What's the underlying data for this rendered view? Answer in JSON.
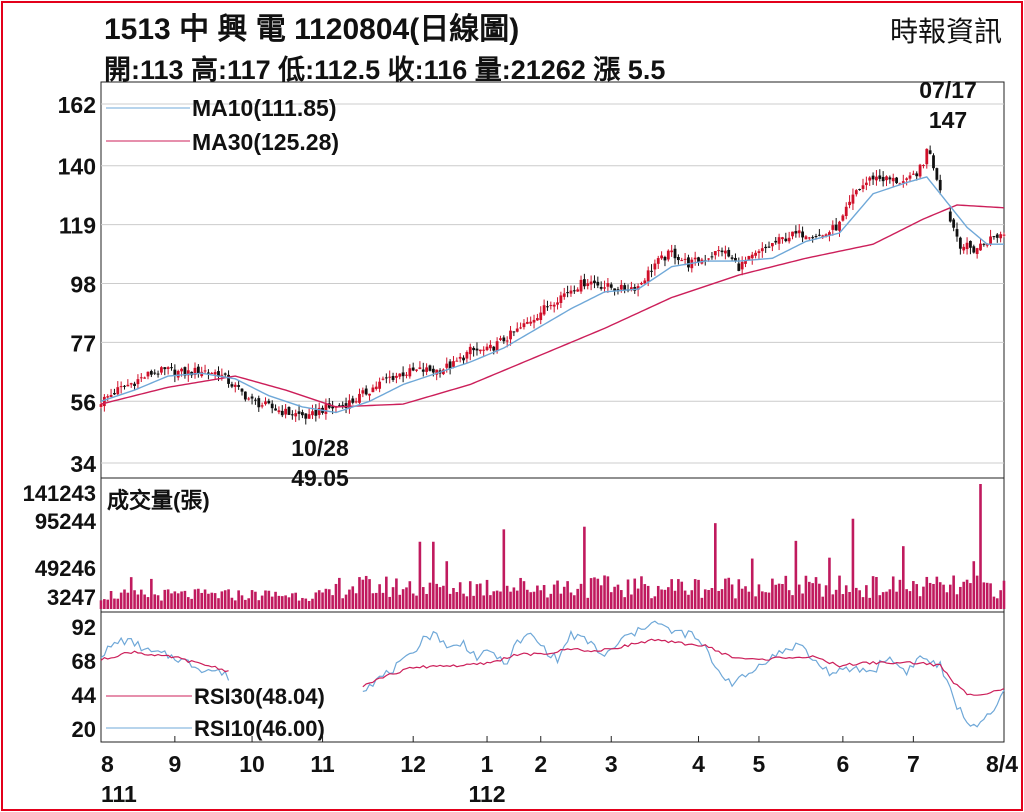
{
  "header": {
    "title": "1513  中 興 電 1120804(日線圖)",
    "source": "時報資訊",
    "quote": "開:113 高:117 低:112.5 收:116 量:21262 漲 5.5"
  },
  "colors": {
    "up": "#d0102a",
    "down": "#111111",
    "ma10": "#6fa8d8",
    "ma30": "#cc1f5a",
    "volume": "#c01a5e",
    "rsi10": "#6fa8d8",
    "rsi30": "#cc1f5a",
    "frame": "#e3001b",
    "grid": "#cccccc"
  },
  "chart_data": [
    {
      "type": "candlestick",
      "panel": "price",
      "ylim": [
        34,
        162
      ],
      "yticks": [
        "162",
        "140",
        "119",
        "98",
        "77",
        "56",
        "34"
      ],
      "grid": true,
      "legend": [
        "MA10(111.85)",
        "MA30(125.28)"
      ],
      "annotations": [
        {
          "date": "07/17",
          "value": "147"
        },
        {
          "date": "10/28",
          "value": "49.05"
        }
      ],
      "anchors": [
        [
          0,
          56
        ],
        [
          5,
          60
        ],
        [
          10,
          63
        ],
        [
          15,
          66
        ],
        [
          20,
          67
        ],
        [
          25,
          66
        ],
        [
          30,
          67
        ],
        [
          35,
          66
        ],
        [
          40,
          61
        ],
        [
          45,
          56
        ],
        [
          50,
          54
        ],
        [
          55,
          52
        ],
        [
          60,
          51
        ],
        [
          62,
          50
        ],
        [
          65,
          53
        ],
        [
          70,
          54
        ],
        [
          75,
          56
        ],
        [
          80,
          60
        ],
        [
          85,
          64
        ],
        [
          90,
          66
        ],
        [
          95,
          67
        ],
        [
          100,
          67
        ],
        [
          105,
          69
        ],
        [
          110,
          74
        ],
        [
          115,
          74
        ],
        [
          120,
          78
        ],
        [
          125,
          82
        ],
        [
          130,
          87
        ],
        [
          135,
          92
        ],
        [
          140,
          96
        ],
        [
          145,
          99
        ],
        [
          150,
          97
        ],
        [
          155,
          96
        ],
        [
          160,
          97
        ],
        [
          165,
          105
        ],
        [
          170,
          109
        ],
        [
          175,
          105
        ],
        [
          180,
          107
        ],
        [
          185,
          110
        ],
        [
          190,
          104
        ],
        [
          195,
          108
        ],
        [
          200,
          112
        ],
        [
          205,
          115
        ],
        [
          210,
          116
        ],
        [
          215,
          115
        ],
        [
          220,
          119
        ],
        [
          225,
          131
        ],
        [
          230,
          136
        ],
        [
          235,
          135
        ],
        [
          240,
          134
        ],
        [
          245,
          140
        ],
        [
          246,
          147
        ],
        [
          248,
          140
        ],
        [
          252,
          124
        ],
        [
          256,
          112
        ],
        [
          260,
          110
        ],
        [
          265,
          114
        ],
        [
          269,
          116
        ]
      ],
      "ma10": [
        [
          0,
          56
        ],
        [
          10,
          60
        ],
        [
          20,
          65
        ],
        [
          30,
          66
        ],
        [
          40,
          64
        ],
        [
          50,
          58
        ],
        [
          60,
          54
        ],
        [
          70,
          52
        ],
        [
          80,
          56
        ],
        [
          90,
          62
        ],
        [
          100,
          66
        ],
        [
          110,
          70
        ],
        [
          120,
          75
        ],
        [
          130,
          82
        ],
        [
          140,
          89
        ],
        [
          150,
          95
        ],
        [
          160,
          96
        ],
        [
          170,
          104
        ],
        [
          180,
          106
        ],
        [
          190,
          106
        ],
        [
          200,
          107
        ],
        [
          210,
          113
        ],
        [
          220,
          116
        ],
        [
          230,
          130
        ],
        [
          240,
          134
        ],
        [
          246,
          136
        ],
        [
          252,
          127
        ],
        [
          258,
          118
        ],
        [
          264,
          112
        ],
        [
          269,
          112
        ]
      ],
      "ma30": [
        [
          0,
          55
        ],
        [
          20,
          61
        ],
        [
          40,
          65
        ],
        [
          55,
          60
        ],
        [
          70,
          54
        ],
        [
          90,
          55
        ],
        [
          110,
          62
        ],
        [
          130,
          72
        ],
        [
          150,
          82
        ],
        [
          170,
          93
        ],
        [
          190,
          101
        ],
        [
          210,
          107
        ],
        [
          230,
          112
        ],
        [
          245,
          121
        ],
        [
          255,
          126
        ],
        [
          269,
          125
        ]
      ]
    },
    {
      "type": "bar",
      "panel": "volume",
      "title": "成交量(張)",
      "ylim": [
        0,
        141243
      ],
      "yticks": [
        "141243",
        "95244",
        "49246",
        "3247"
      ],
      "spikes": [
        [
          9,
          36000
        ],
        [
          15,
          34000
        ],
        [
          95,
          76000
        ],
        [
          99,
          76000
        ],
        [
          103,
          54000
        ],
        [
          120,
          90000
        ],
        [
          144,
          93000
        ],
        [
          183,
          97000
        ],
        [
          194,
          57000
        ],
        [
          207,
          77000
        ],
        [
          217,
          58000
        ],
        [
          224,
          102000
        ],
        [
          239,
          71000
        ],
        [
          260,
          54000
        ],
        [
          262,
          141243
        ],
        [
          265,
          29000
        ],
        [
          268,
          21262
        ]
      ],
      "max_display": "141243"
    },
    {
      "type": "line",
      "panel": "rsi",
      "ylim": [
        20,
        92
      ],
      "yticks": [
        "92",
        "68",
        "44",
        "20"
      ],
      "legend": [
        "RSI30(48.04)",
        "RSI10(46.00)"
      ],
      "rsi10": [
        [
          0,
          72
        ],
        [
          6,
          82
        ],
        [
          10,
          80
        ],
        [
          14,
          74
        ],
        [
          18,
          72
        ],
        [
          22,
          70
        ],
        [
          26,
          66
        ],
        [
          30,
          62
        ],
        [
          35,
          60
        ],
        [
          38,
          56
        ],
        [
          78,
          48
        ],
        [
          85,
          58
        ],
        [
          92,
          70
        ],
        [
          96,
          84
        ],
        [
          100,
          86
        ],
        [
          104,
          76
        ],
        [
          108,
          80
        ],
        [
          112,
          70
        ],
        [
          117,
          74
        ],
        [
          120,
          64
        ],
        [
          124,
          80
        ],
        [
          128,
          86
        ],
        [
          132,
          76
        ],
        [
          136,
          68
        ],
        [
          140,
          86
        ],
        [
          146,
          80
        ],
        [
          150,
          70
        ],
        [
          156,
          84
        ],
        [
          160,
          88
        ],
        [
          164,
          96
        ],
        [
          170,
          88
        ],
        [
          176,
          86
        ],
        [
          180,
          76
        ],
        [
          184,
          60
        ],
        [
          188,
          52
        ],
        [
          192,
          56
        ],
        [
          198,
          68
        ],
        [
          205,
          76
        ],
        [
          208,
          80
        ],
        [
          212,
          68
        ],
        [
          218,
          58
        ],
        [
          224,
          62
        ],
        [
          230,
          60
        ],
        [
          234,
          70
        ],
        [
          240,
          60
        ],
        [
          244,
          70
        ],
        [
          250,
          64
        ],
        [
          254,
          40
        ],
        [
          258,
          24
        ],
        [
          262,
          22
        ],
        [
          266,
          32
        ],
        [
          269,
          46
        ]
      ],
      "rsi30": [
        [
          0,
          68
        ],
        [
          6,
          72
        ],
        [
          10,
          74
        ],
        [
          16,
          71
        ],
        [
          22,
          70
        ],
        [
          28,
          66
        ],
        [
          34,
          63
        ],
        [
          38,
          60
        ],
        [
          78,
          50
        ],
        [
          84,
          56
        ],
        [
          92,
          62
        ],
        [
          100,
          64
        ],
        [
          108,
          64
        ],
        [
          116,
          66
        ],
        [
          124,
          72
        ],
        [
          132,
          72
        ],
        [
          140,
          76
        ],
        [
          148,
          74
        ],
        [
          156,
          78
        ],
        [
          164,
          82
        ],
        [
          172,
          80
        ],
        [
          180,
          78
        ],
        [
          188,
          70
        ],
        [
          196,
          68
        ],
        [
          204,
          70
        ],
        [
          212,
          70
        ],
        [
          220,
          64
        ],
        [
          228,
          66
        ],
        [
          236,
          66
        ],
        [
          244,
          66
        ],
        [
          250,
          64
        ],
        [
          254,
          52
        ],
        [
          258,
          44
        ],
        [
          262,
          44
        ],
        [
          266,
          46
        ],
        [
          269,
          48
        ]
      ]
    }
  ],
  "x_axis": {
    "month_ticks": [
      {
        "label": "8",
        "x": 0
      },
      {
        "label": "9",
        "x": 22
      },
      {
        "label": "10",
        "x": 45
      },
      {
        "label": "11",
        "x": 66
      },
      {
        "label": "12",
        "x": 93
      },
      {
        "label": "1",
        "x": 115
      },
      {
        "label": "2",
        "x": 131
      },
      {
        "label": "3",
        "x": 152
      },
      {
        "label": "4",
        "x": 178
      },
      {
        "label": "5",
        "x": 196
      },
      {
        "label": "6",
        "x": 221
      },
      {
        "label": "7",
        "x": 242
      },
      {
        "label": "8/4",
        "x": 269
      }
    ],
    "year_labels": [
      {
        "label": "111",
        "x": 0
      },
      {
        "label": "112",
        "x": 115
      }
    ]
  }
}
